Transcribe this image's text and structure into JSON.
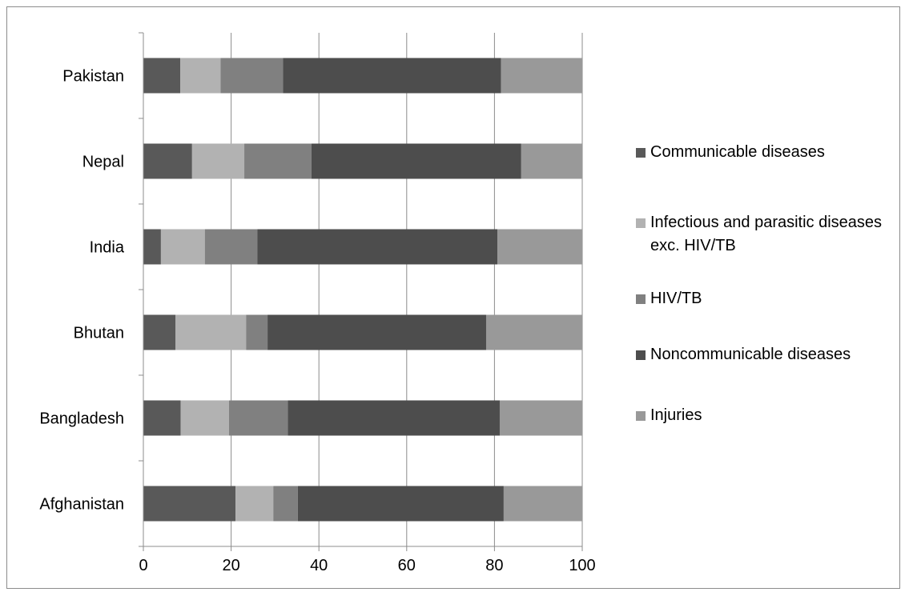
{
  "chart_data": {
    "type": "bar",
    "orientation": "horizontal",
    "stacked": true,
    "title": "",
    "xlabel": "",
    "ylabel": "",
    "xlim": [
      0,
      100
    ],
    "x_ticks": [
      "0",
      "20",
      "40",
      "60",
      "80",
      "100"
    ],
    "grid": true,
    "legend_position": "right",
    "categories": [
      "Afghanistan",
      "Bangladesh",
      "Bhutan",
      "India",
      "Nepal",
      "Pakistan"
    ],
    "series": [
      {
        "name": "Communicable diseases",
        "color": "#595959",
        "values": [
          21.0,
          8.5,
          7.3,
          4.0,
          11.1,
          8.4
        ]
      },
      {
        "name": "Infectious and parasitic diseases exc. HIV/TB",
        "color": "#b2b2b2",
        "values": [
          8.6,
          11.0,
          16.1,
          10.0,
          11.9,
          9.2
        ]
      },
      {
        "name": "HIV/TB",
        "color": "#808080",
        "values": [
          5.6,
          13.4,
          4.9,
          12.0,
          15.3,
          14.2
        ]
      },
      {
        "name": "Noncommunicable diseases",
        "color": "#4d4d4d",
        "values": [
          46.9,
          48.3,
          49.8,
          54.7,
          47.8,
          49.7
        ]
      },
      {
        "name": "Injuries",
        "color": "#999999",
        "values": [
          17.9,
          18.8,
          21.9,
          19.3,
          13.9,
          18.5
        ]
      }
    ]
  }
}
